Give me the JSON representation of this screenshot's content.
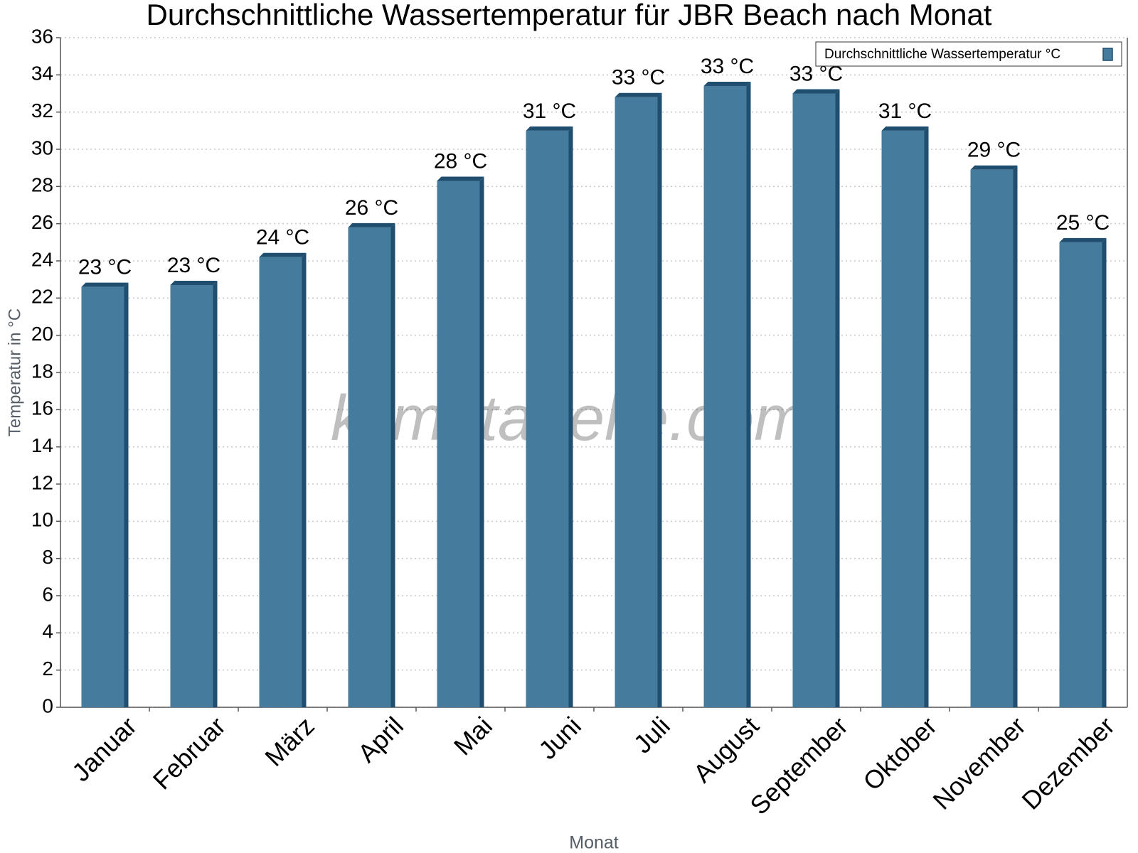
{
  "chart_data": {
    "type": "bar",
    "title": "Durchschnittliche Wassertemperatur für JBR Beach nach Monat",
    "x_label": "Monat",
    "y_label": "Temperatur in °C",
    "watermark": "klimatabelle.com",
    "categories": [
      "Januar",
      "Februar",
      "März",
      "April",
      "Mai",
      "Juni",
      "Juli",
      "August",
      "September",
      "Oktober",
      "November",
      "Dezember"
    ],
    "series": [
      {
        "name": "Durchschnittliche Wassertemperatur °C",
        "color": "#457b9d",
        "values": [
          22.6,
          22.7,
          24.2,
          25.8,
          28.3,
          31.0,
          32.8,
          33.4,
          33.0,
          31.0,
          28.9,
          25.0
        ],
        "value_labels": [
          "23 °C",
          "23 °C",
          "24 °C",
          "26 °C",
          "28 °C",
          "31 °C",
          "33 °C",
          "33 °C",
          "33 °C",
          "31 °C",
          "29 °C",
          "25 °C"
        ]
      }
    ],
    "ylim": [
      0,
      36
    ],
    "yticks": [
      0,
      2,
      4,
      6,
      8,
      10,
      12,
      14,
      16,
      18,
      20,
      22,
      24,
      26,
      28,
      30,
      32,
      34,
      36
    ],
    "grid": true,
    "legend": "upper right"
  }
}
